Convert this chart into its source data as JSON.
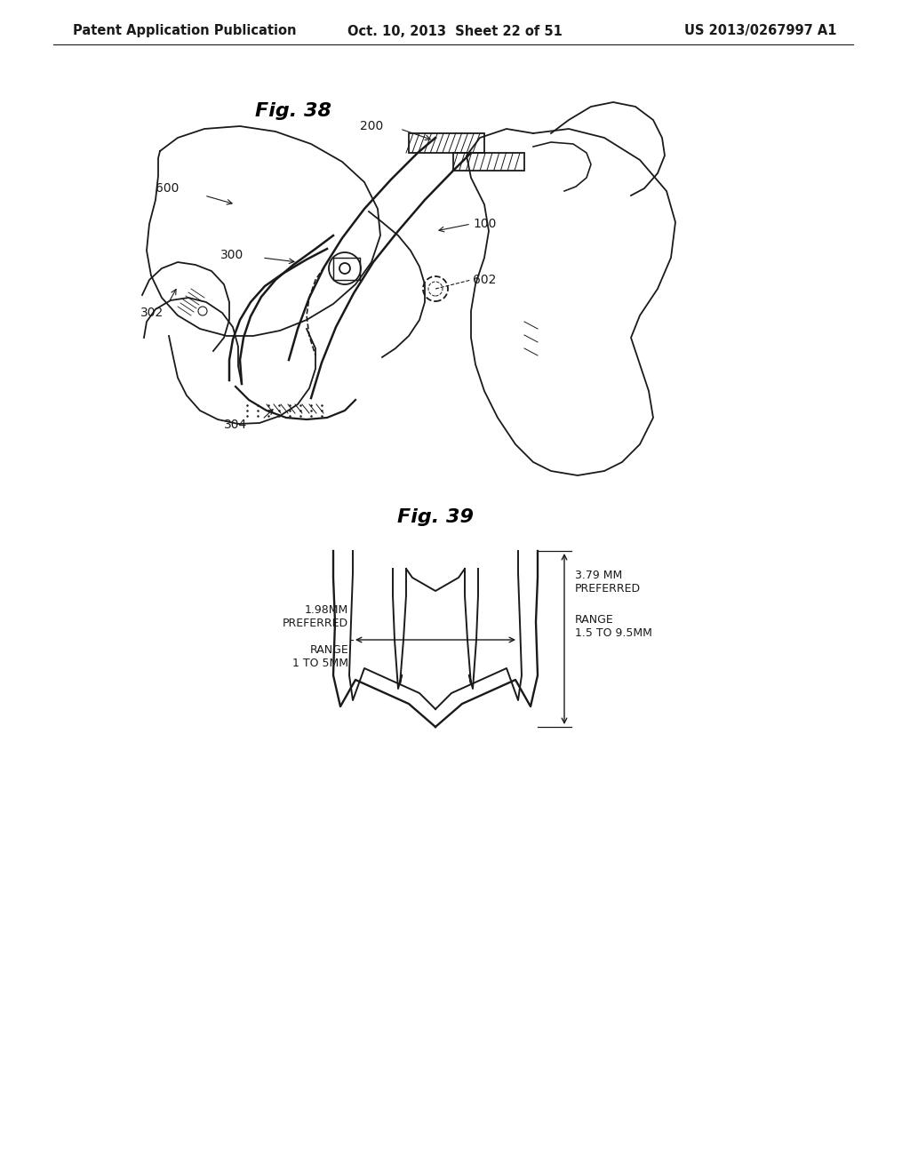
{
  "bg_color": "#ffffff",
  "header_left": "Patent Application Publication",
  "header_mid": "Oct. 10, 2013  Sheet 22 of 51",
  "header_right": "US 2013/0267997 A1",
  "fig38_title": "Fig. 38",
  "fig39_title": "Fig. 39",
  "label_39_left_title": "1.98MM\nPREFERRED",
  "label_39_left_sub": "RANGE\n1 TO 5MM",
  "label_39_right_title": "3.79 MM\nPREFERRED",
  "label_39_right_sub": "RANGE\n1.5 TO 9.5MM",
  "line_color": "#1a1a1a",
  "text_color": "#1a1a1a",
  "fig_title_color": "#000000"
}
